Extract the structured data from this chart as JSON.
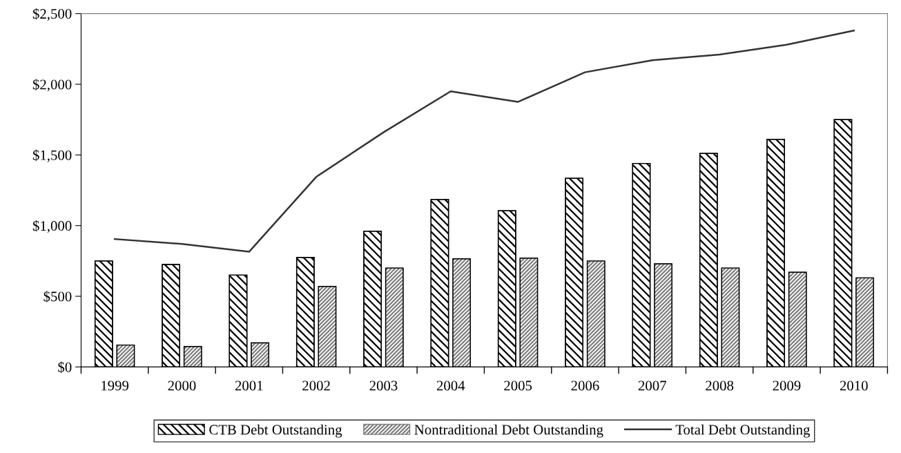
{
  "chart_data": {
    "type": "bar",
    "categories": [
      "1999",
      "2000",
      "2001",
      "2002",
      "2003",
      "2004",
      "2005",
      "2006",
      "2007",
      "2008",
      "2009",
      "2010"
    ],
    "series": [
      {
        "name": "CTB Debt Outstanding",
        "color": "#000000",
        "values": [
          750,
          725,
          650,
          775,
          960,
          1185,
          1105,
          1335,
          1440,
          1510,
          1610,
          1750
        ]
      },
      {
        "name": "Nontraditional Debt Outstanding",
        "color": "#7f7f7f",
        "values": [
          155,
          145,
          170,
          570,
          700,
          765,
          770,
          750,
          730,
          700,
          670,
          630
        ]
      },
      {
        "name": "Total Debt Outstanding",
        "type": "line",
        "color": "#333333",
        "values": [
          905,
          870,
          815,
          1345,
          1660,
          1950,
          1875,
          2085,
          2170,
          2210,
          2280,
          2380
        ]
      }
    ],
    "ylim": [
      0,
      2500
    ],
    "yticks": [
      {
        "value": 0,
        "label": "$0"
      },
      {
        "value": 500,
        "label": "$500"
      },
      {
        "value": 1000,
        "label": "$1,000"
      },
      {
        "value": 1500,
        "label": "$1,500"
      },
      {
        "value": 2000,
        "label": "$2,000"
      },
      {
        "value": 2500,
        "label": "$2,500"
      }
    ],
    "grid": false,
    "legend": "bottom",
    "marker": "none",
    "line_style": "solid"
  }
}
